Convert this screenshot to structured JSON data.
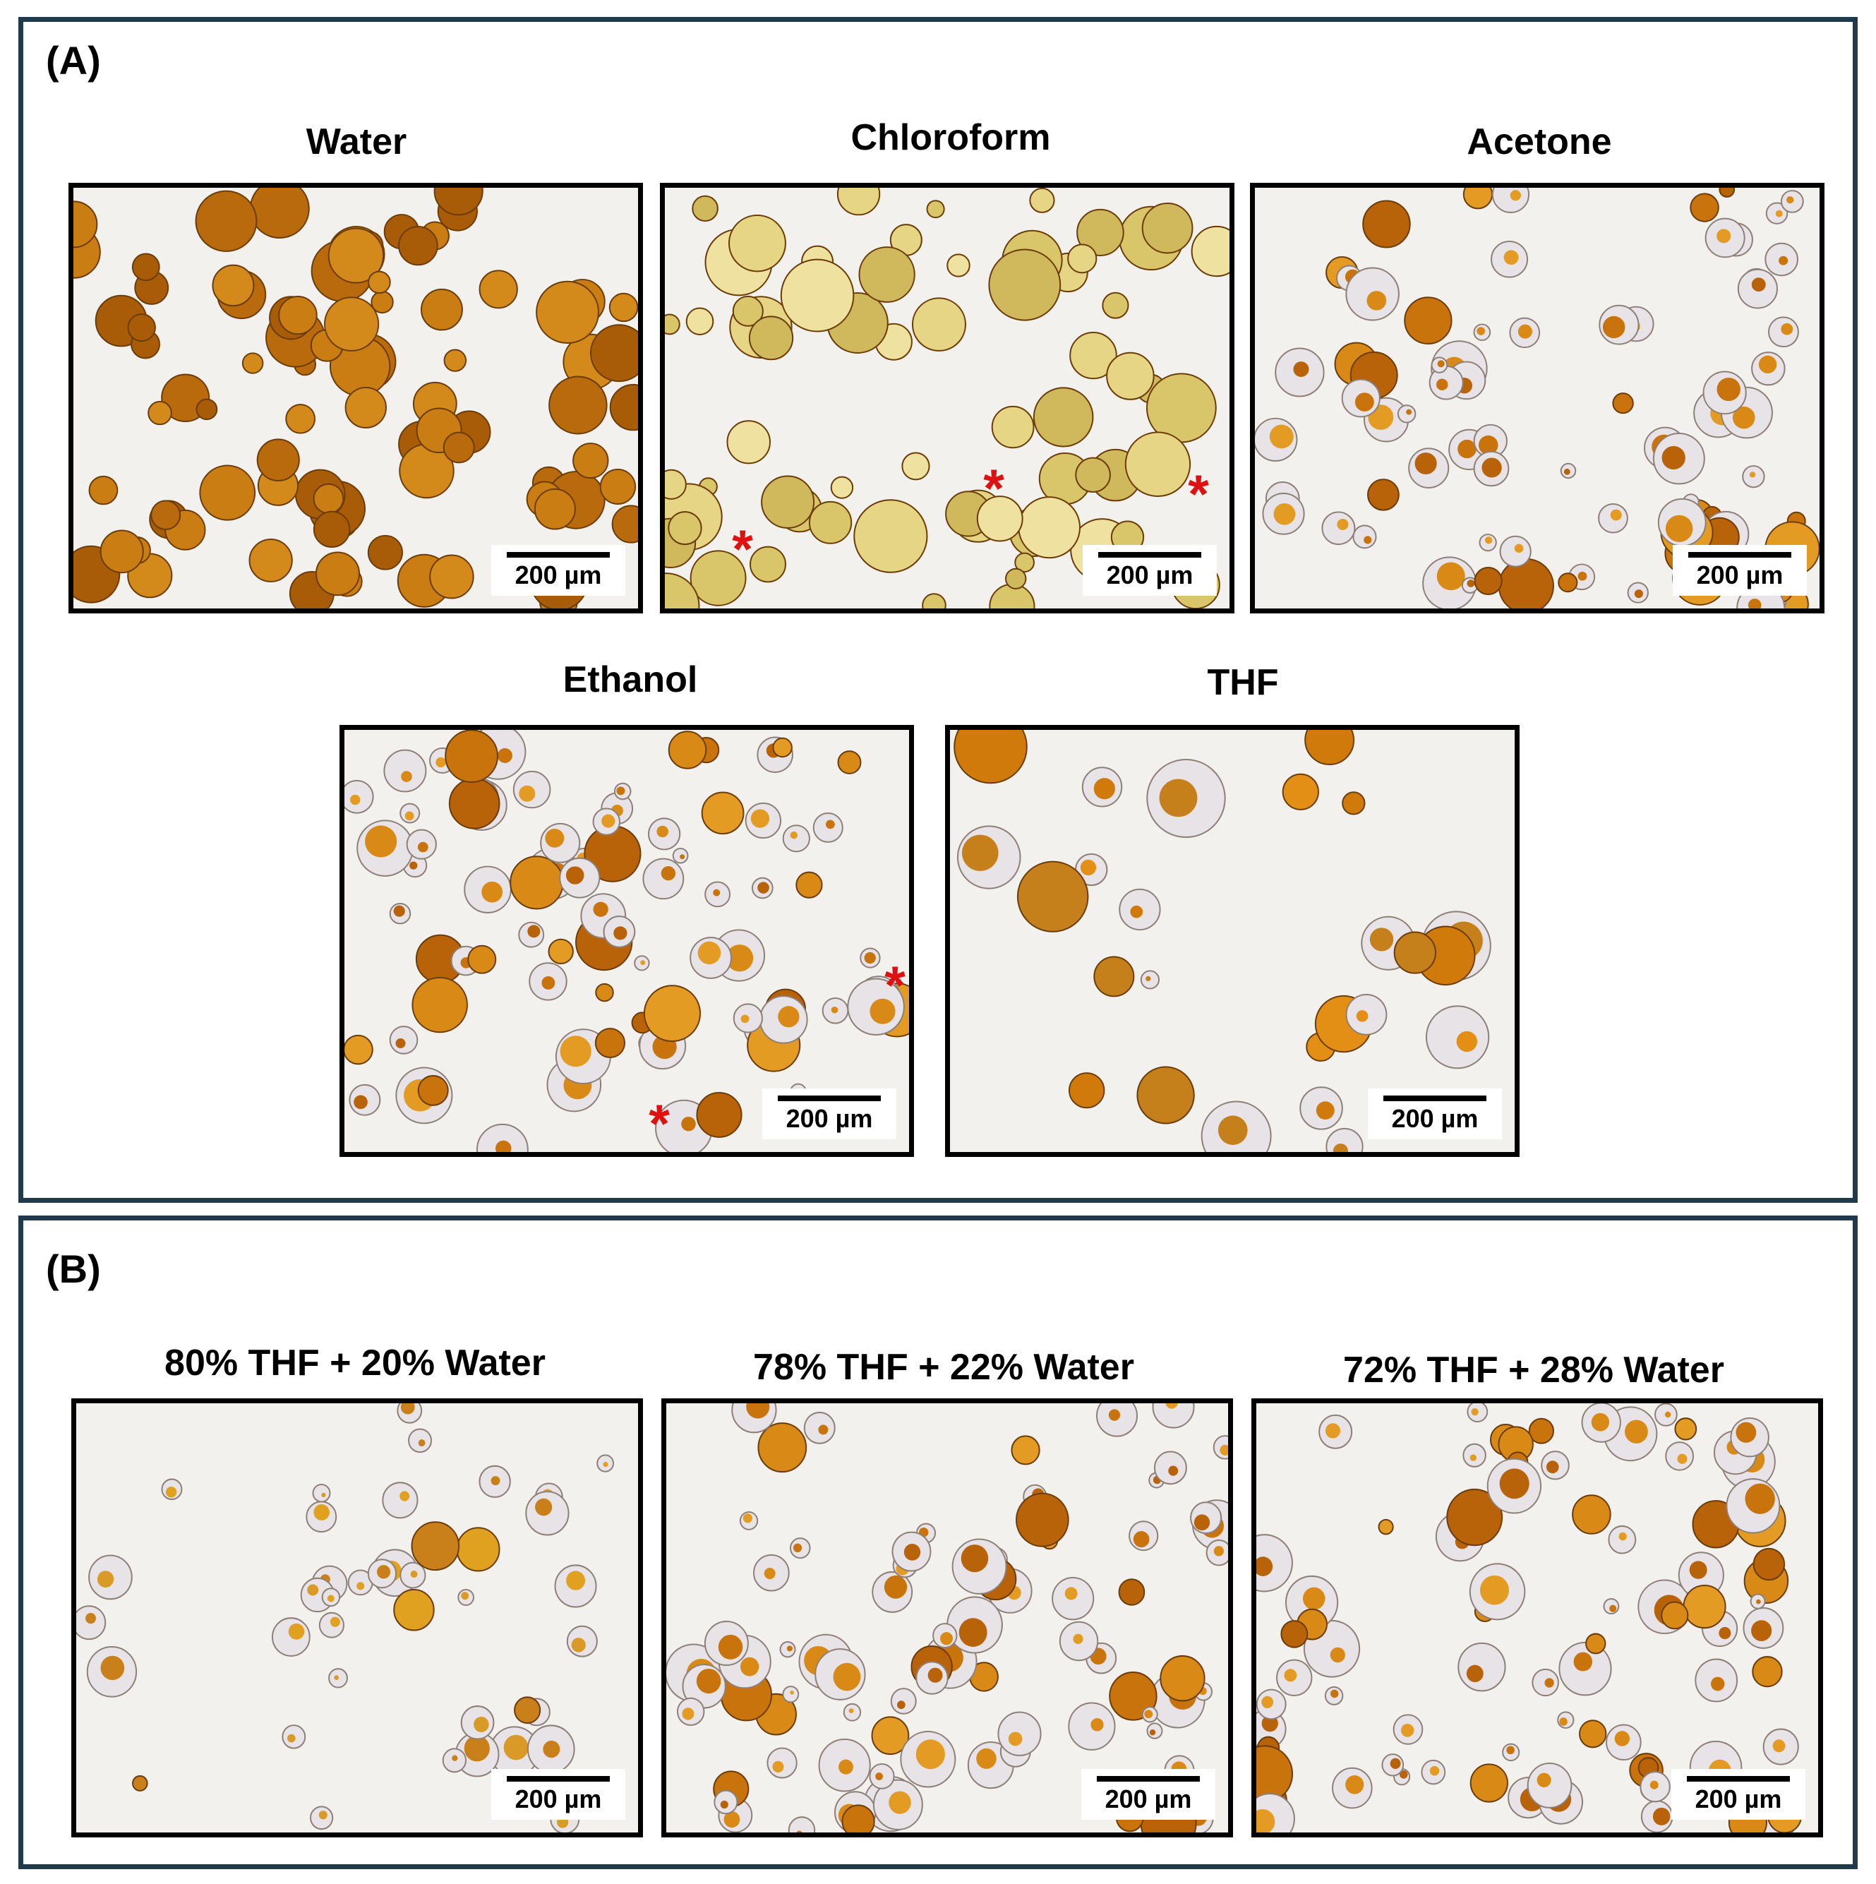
{
  "section_a": {
    "label": "(A)",
    "panels": [
      {
        "title": "Water",
        "scale": "200 µm",
        "palette": "dark-orange",
        "asterisks": []
      },
      {
        "title": "Chloroform",
        "scale": "200 µm",
        "palette": "pale-yellow",
        "asterisks": [
          "*",
          "*",
          "*"
        ]
      },
      {
        "title": "Acetone",
        "scale": "200 µm",
        "palette": "hollow-orange",
        "asterisks": []
      },
      {
        "title": "Ethanol",
        "scale": "200 µm",
        "palette": "hollow-orange",
        "asterisks": [
          "*",
          "*"
        ]
      },
      {
        "title": "THF",
        "scale": "200 µm",
        "palette": "sparse-orange",
        "asterisks": []
      }
    ]
  },
  "section_b": {
    "label": "(B)",
    "panels": [
      {
        "title": "80% THF + 20% Water",
        "scale": "200 µm",
        "palette": "sparse-hollow"
      },
      {
        "title": "78% THF + 22% Water",
        "scale": "200 µm",
        "palette": "hollow-orange"
      },
      {
        "title": "72% THF + 28% Water",
        "scale": "200 µm",
        "palette": "hollow-orange"
      }
    ]
  },
  "colors": {
    "section_border": "#1f3a4d",
    "asterisk": "#e01010",
    "microscope_background": "#f3f1ee"
  }
}
